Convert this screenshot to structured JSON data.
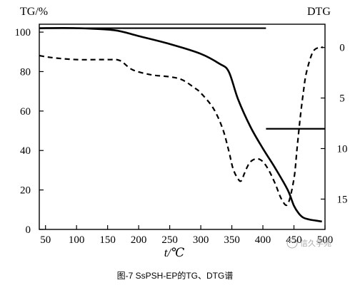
{
  "chart_data": {
    "type": "line",
    "ylabel_left": "TG/%",
    "ylabel_right": "DTG",
    "xlabel": "t/℃",
    "caption": "图-7  SsPSH-EP的TG、DTG谱",
    "xlim": [
      40,
      500
    ],
    "ylim_left": [
      0,
      104
    ],
    "ylim_right": [
      18,
      -2.3
    ],
    "x_ticks": [
      "50",
      "100",
      "150",
      "200",
      "250",
      "300",
      "350",
      "400",
      "450",
      "500"
    ],
    "y_ticks_left": [
      "0",
      "20",
      "40",
      "60",
      "80",
      "100"
    ],
    "y_ticks_right": [
      "0",
      "5",
      "10",
      "15"
    ],
    "grid": false,
    "tg_curve": {
      "x": [
        40,
        100,
        160,
        200,
        250,
        300,
        330,
        345,
        360,
        380,
        400,
        420,
        440,
        450,
        458,
        465,
        475,
        485,
        495
      ],
      "y": [
        102,
        102,
        101,
        98,
        94,
        89,
        84,
        80,
        66,
        52,
        41,
        31,
        20,
        12,
        8,
        6,
        5,
        4.5,
        4
      ]
    },
    "dtg_curve": {
      "x": [
        40,
        60,
        100,
        150,
        170,
        190,
        220,
        250,
        270,
        290,
        300,
        320,
        335,
        345,
        352,
        360,
        365,
        370,
        375,
        380,
        390,
        400,
        410,
        420,
        430,
        440,
        450,
        455,
        460,
        465,
        470,
        480,
        490,
        497
      ],
      "y": [
        0.8,
        1.0,
        1.2,
        1.2,
        1.3,
        2.2,
        2.7,
        2.9,
        3.2,
        4.0,
        4.5,
        6.0,
        8.0,
        10.2,
        12.0,
        13.0,
        13.2,
        12.5,
        11.8,
        11.3,
        11.0,
        11.3,
        12.2,
        13.5,
        15.0,
        15.5,
        13.0,
        10.0,
        7.0,
        4.5,
        2.5,
        0.5,
        0.0,
        0.0
      ]
    },
    "baseline_upper": {
      "x": [
        40,
        405
      ],
      "y": [
        102,
        102
      ]
    },
    "baseline_lower": {
      "x": [
        405,
        500
      ],
      "y": [
        51,
        51
      ]
    }
  },
  "watermark": "信久学苑"
}
